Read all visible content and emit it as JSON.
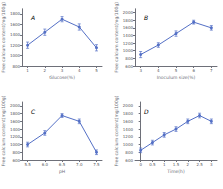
{
  "chart_data": [
    {
      "type": "line",
      "title": "A",
      "xlabel": "Glucose(%)",
      "ylabel": "Free calcium content(mg/100g)",
      "x": [
        1,
        2,
        3,
        4,
        5
      ],
      "values": [
        1200,
        1450,
        1700,
        1550,
        1150
      ],
      "yerr": [
        60,
        60,
        50,
        60,
        60
      ],
      "xlim": [
        0.68,
        5.32
      ],
      "xticks": [
        1,
        2,
        3,
        4,
        5
      ],
      "ylim": [
        800,
        1900
      ],
      "yticks": [
        800,
        1000,
        1200,
        1400,
        1600,
        1800
      ],
      "marker": "circle",
      "grid": false
    },
    {
      "type": "line",
      "title": "B",
      "xlabel": "Inoculum size(%)",
      "ylabel": "Free calcium content(mg/100g)",
      "x": [
        3,
        4,
        5,
        6,
        7
      ],
      "values": [
        900,
        1150,
        1450,
        1750,
        1600
      ],
      "yerr": [
        80,
        60,
        70,
        50,
        60
      ],
      "xlim": [
        2.68,
        7.32
      ],
      "xticks": [
        3,
        4,
        5,
        6,
        7
      ],
      "ylim": [
        600,
        2100
      ],
      "yticks": [
        600,
        800,
        1000,
        1200,
        1400,
        1600,
        1800,
        2000
      ],
      "marker": "circle",
      "grid": false
    },
    {
      "type": "line",
      "title": "C",
      "xlabel": "pH",
      "ylabel": "Free calcium content(mg/100g)",
      "x": [
        5.5,
        6,
        6.5,
        7,
        7.5
      ],
      "values": [
        1000,
        1300,
        1750,
        1600,
        800
      ],
      "yerr": [
        60,
        60,
        50,
        60,
        60
      ],
      "xlim": [
        5.34,
        7.66
      ],
      "xticks": [
        5.5,
        {
          "value": 6,
          "label": "6.0"
        },
        6.5,
        {
          "value": 7,
          "label": "7.0"
        },
        7.5
      ],
      "ylim": [
        600,
        2100
      ],
      "yticks": [
        600,
        800,
        1000,
        1200,
        1400,
        1600,
        1800,
        2000
      ],
      "marker": "circle",
      "grid": false
    },
    {
      "type": "line",
      "title": "D",
      "xlabel": "Time(h)",
      "ylabel": "Free calcium content(mg/100g)",
      "x": [
        0,
        0.5,
        1,
        1.5,
        2,
        2.5,
        3
      ],
      "values": [
        850,
        1050,
        1250,
        1400,
        1600,
        1750,
        1600
      ],
      "yerr": [
        60,
        60,
        60,
        60,
        60,
        60,
        60
      ],
      "xlim": [
        -0.24,
        3.24
      ],
      "xticks": [
        0,
        0.5,
        1,
        1.5,
        2,
        2.5,
        3
      ],
      "ylim": [
        600,
        2100
      ],
      "yticks": [
        600,
        800,
        1000,
        1200,
        1400,
        1600,
        1800,
        2000
      ],
      "marker": "circle",
      "grid": false
    }
  ]
}
